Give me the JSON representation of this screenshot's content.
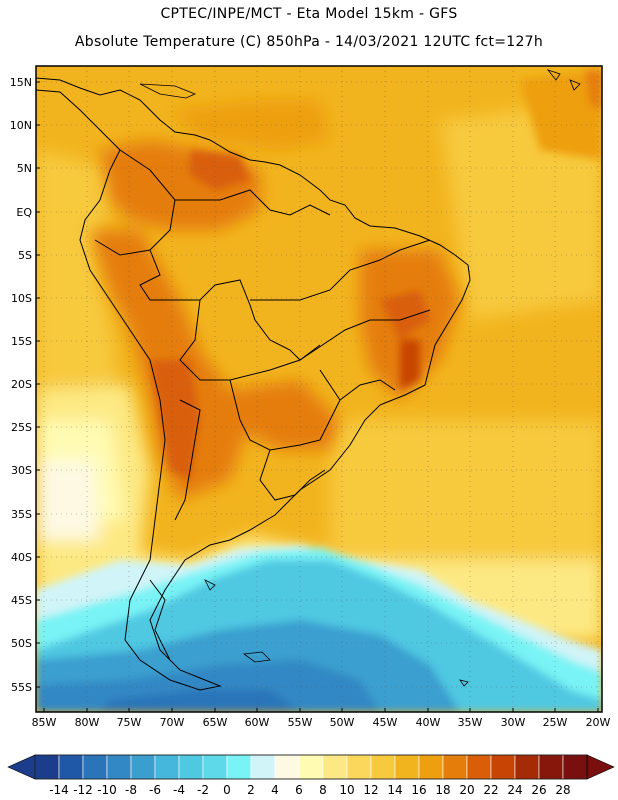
{
  "title_line1": "CPTEC/INPE/MCT -  Eta Model 15km - GFS",
  "title_line2": "Absolute Temperature (C) 850hPa - 14/03/2021 12UTC fct=127h",
  "map": {
    "lat_labels": [
      "15N",
      "10N",
      "5N",
      "EQ",
      "5S",
      "10S",
      "15S",
      "20S",
      "25S",
      "30S",
      "35S",
      "40S",
      "45S",
      "50S",
      "55S"
    ],
    "lon_labels": [
      "85W",
      "80W",
      "75W",
      "70W",
      "65W",
      "60W",
      "55W",
      "50W",
      "45W",
      "40W",
      "35W",
      "30W",
      "25W",
      "20W"
    ]
  },
  "legend": {
    "labels": [
      "-14",
      "-12",
      "-10",
      "-8",
      "-6",
      "-4",
      "-2",
      "0",
      "2",
      "4",
      "6",
      "8",
      "10",
      "12",
      "14",
      "16",
      "18",
      "20",
      "22",
      "24",
      "26",
      "28"
    ],
    "colors": [
      "#1c3c8c",
      "#1f58a6",
      "#2a74b9",
      "#3188c4",
      "#3a9fcf",
      "#45b6dc",
      "#4fc8e2",
      "#5ed9ea",
      "#79f3f5",
      "#d0f4f8",
      "#fdf9e2",
      "#fffbb3",
      "#fde983",
      "#fbd85c",
      "#f7c93c",
      "#f2b41e",
      "#ee9f10",
      "#e57d0b",
      "#d95e07",
      "#c74405",
      "#a52a06",
      "#86170a",
      "#7a0f10"
    ]
  }
}
